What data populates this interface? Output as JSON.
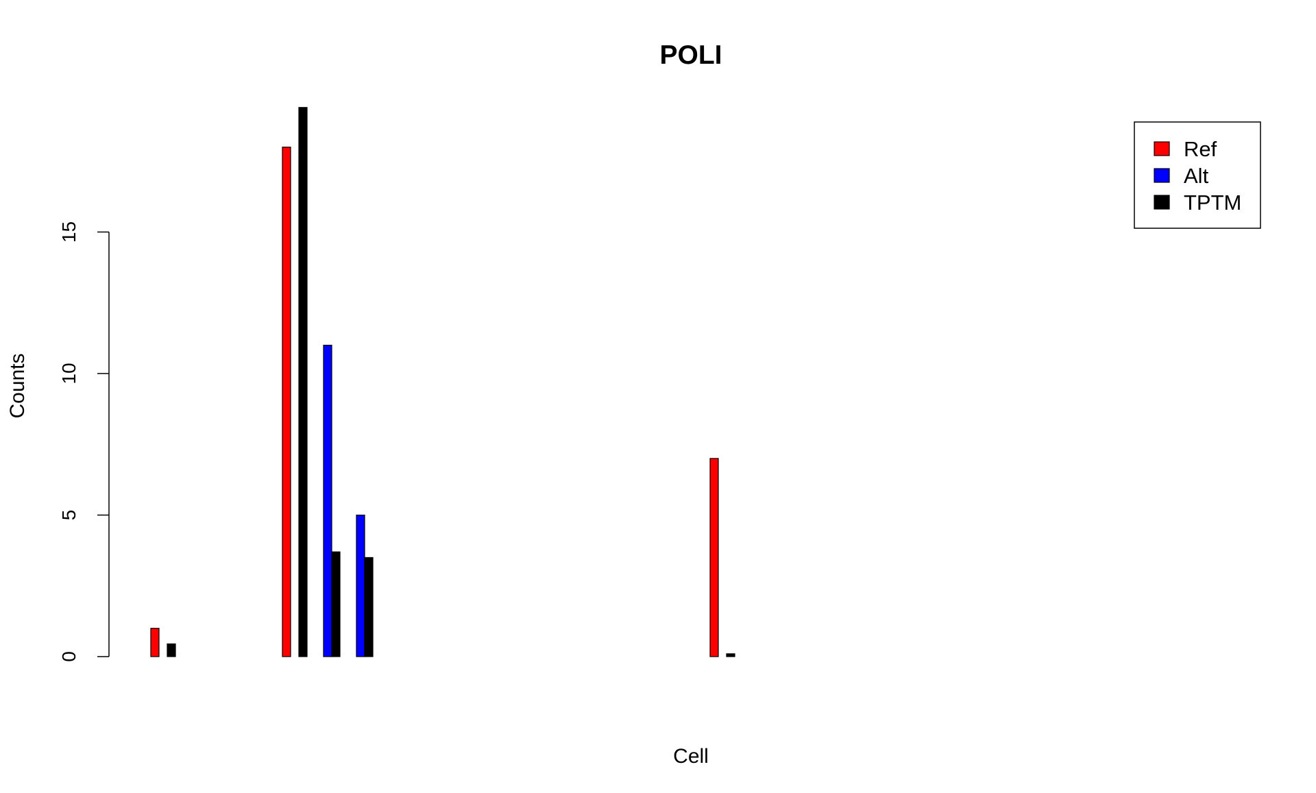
{
  "chart_data": {
    "type": "bar",
    "title": "POLI",
    "xlabel": "Cell",
    "ylabel": "Counts",
    "ylim": [
      0,
      19.5
    ],
    "yticks": [
      0,
      5,
      10,
      15
    ],
    "ytick_labels": [
      "0",
      "5",
      "10",
      "15"
    ],
    "grid": false,
    "legend_position": "top-right",
    "series": [
      {
        "name": "Ref",
        "color": "#ff0000",
        "values": [
          1,
          0,
          0,
          0,
          18,
          0,
          0,
          0,
          0,
          0,
          0,
          0,
          0,
          0,
          0,
          0,
          0,
          7,
          0,
          0,
          0,
          0,
          0,
          0,
          0,
          0,
          0,
          0,
          0,
          0,
          0
        ]
      },
      {
        "name": "Alt",
        "color": "#0000ff",
        "values": [
          0,
          0,
          0,
          0,
          0,
          11,
          5,
          0,
          0,
          0,
          0,
          0,
          0,
          0,
          0,
          0,
          0,
          0,
          0,
          0,
          0,
          0,
          0,
          0,
          0,
          0,
          0,
          0,
          0,
          0,
          0
        ]
      },
      {
        "name": "TPTM",
        "color": "#000000",
        "values": [
          0.45,
          0,
          0,
          0,
          19.4,
          3.7,
          3.5,
          0,
          0,
          0,
          0,
          0,
          0,
          0,
          0,
          0,
          0,
          0.1,
          0,
          0,
          0,
          0,
          0,
          0,
          0,
          0,
          0,
          0,
          0,
          0,
          0
        ]
      }
    ]
  }
}
